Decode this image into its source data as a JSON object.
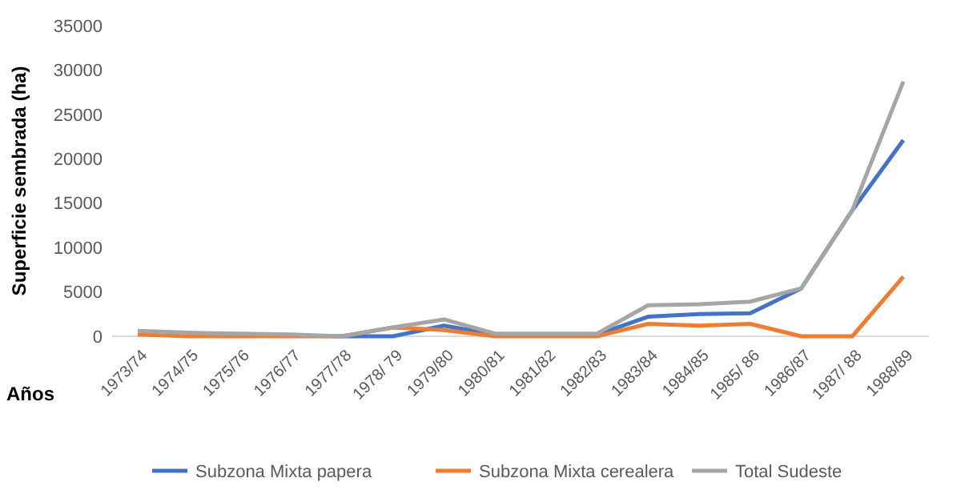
{
  "chart_data": {
    "type": "line",
    "xlabel": "Años",
    "ylabel": "Superficie sembrada (ha)",
    "categories": [
      "1973/74",
      "1974/75",
      "1975/76",
      "1976/77",
      "1977/78",
      "1978/ 79",
      "1979/80",
      "1980/81",
      "1981/82",
      "1982/83",
      "1983/84",
      "1984/85",
      "1985/ 86",
      "1986/87",
      "1987/ 88",
      "1988/89"
    ],
    "series": [
      {
        "name": "Subzona Mixta papera",
        "color": "#4472c4",
        "values": [
          null,
          null,
          null,
          100,
          0,
          0,
          1200,
          200,
          200,
          200,
          2200,
          2500,
          2600,
          5400,
          14200,
          22100
        ]
      },
      {
        "name": "Subzona Mixta cerealera",
        "color": "#ed7d31",
        "values": [
          200,
          0,
          0,
          0,
          0,
          1000,
          700,
          0,
          0,
          0,
          1400,
          1200,
          1400,
          0,
          0,
          6700
        ]
      },
      {
        "name": "Total Sudeste",
        "color": "#a5a5a5",
        "values": [
          600,
          400,
          300,
          200,
          0,
          1000,
          1900,
          300,
          300,
          300,
          3500,
          3600,
          3900,
          5400,
          14200,
          28700
        ]
      }
    ],
    "ylim": [
      0,
      35000
    ],
    "yticks": [
      0,
      5000,
      10000,
      15000,
      20000,
      25000,
      30000,
      35000
    ],
    "legend": "bottom",
    "marker": "none",
    "line_style": "solid"
  }
}
